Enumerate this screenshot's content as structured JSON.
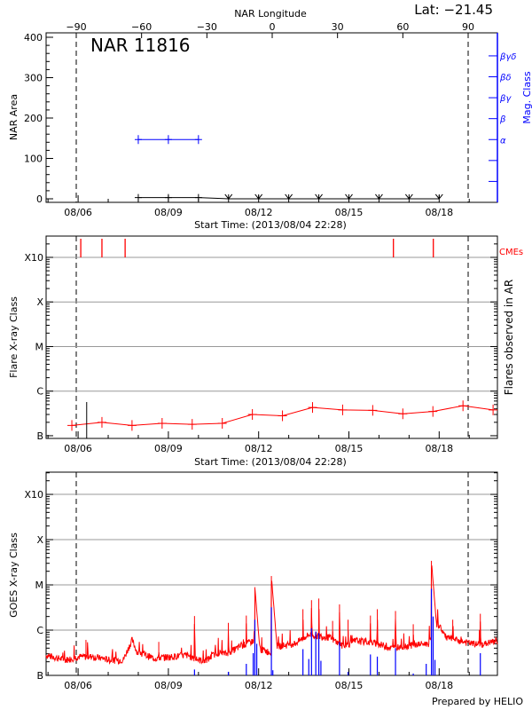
{
  "chart_data": [
    {
      "type": "line",
      "region": "NAR 11816",
      "latitude_label": "Lat: −21.45",
      "top_axis": {
        "label": "NAR Longitude",
        "range": [
          -90,
          90
        ],
        "ticks": [
          -90,
          -60,
          -30,
          0,
          30,
          60,
          90
        ]
      },
      "xlabel": "Start Time: (2013/08/04 22:28)",
      "xrange": [
        "2013-08-04T22:28",
        "2013-08-19T22:28"
      ],
      "xtick_labels": [
        "08/06",
        "08/09",
        "08/12",
        "08/15",
        "08/18"
      ],
      "ylabel": "NAR Area",
      "ylim": [
        -8.8,
        411
      ],
      "yticks": [
        0,
        100,
        200,
        300,
        400
      ],
      "limb_longitudes": [
        -90,
        90
      ],
      "right_axis": {
        "label": "Mag. Class",
        "color": "#0000ff",
        "ticks": [
          "",
          "",
          "α",
          "β",
          "βγ",
          "βδ",
          "βγδ"
        ],
        "range": [
          -1,
          7.1
        ]
      },
      "area_series": {
        "color": "#000000",
        "times": [
          "2013-08-08T00:00",
          "2013-08-09T00:00",
          "2013-08-10T00:00",
          "2013-08-11T00:00",
          "2013-08-12T00:00",
          "2013-08-13T00:00",
          "2013-08-14T00:00",
          "2013-08-15T00:00",
          "2013-08-16T00:00",
          "2013-08-17T00:00",
          "2013-08-18T00:00"
        ],
        "values": [
          3,
          3,
          3,
          0,
          0,
          0,
          0,
          0,
          0,
          0,
          0
        ]
      },
      "mag_class_series": {
        "color": "#0000ff",
        "times": [
          "2013-08-08T00:00",
          "2013-08-09T00:00",
          "2013-08-10T00:00"
        ],
        "values": [
          "α",
          "α",
          "α"
        ]
      }
    },
    {
      "type": "line",
      "xlabel": "Start Time: (2013/08/04 22:28)",
      "xrange": [
        "2013-08-04T22:28",
        "2013-08-19T22:28"
      ],
      "xtick_labels": [
        "08/06",
        "08/09",
        "08/12",
        "08/15",
        "08/18"
      ],
      "ylabel": "Flare X-ray Class",
      "right_label": "Flares observed in AR",
      "yscale": "log",
      "ylim": [
        8.7e-08,
        0.003
      ],
      "yticks": [
        {
          "label": "B",
          "value": 1e-07
        },
        {
          "label": "C",
          "value": 1e-06
        },
        {
          "label": "M",
          "value": 1e-05
        },
        {
          "label": "X",
          "value": 0.0001
        },
        {
          "label": "X10",
          "value": 0.001
        }
      ],
      "grid": true,
      "background_series": {
        "color": "#ff0000",
        "times": [
          "2013-08-05T19:00",
          "2013-08-06T19:00",
          "2013-08-07T19:00",
          "2013-08-08T19:00",
          "2013-08-09T19:00",
          "2013-08-10T19:00",
          "2013-08-11T19:00",
          "2013-08-12T19:00",
          "2013-08-13T19:00",
          "2013-08-14T19:00",
          "2013-08-15T19:00",
          "2013-08-16T19:00",
          "2013-08-17T19:00",
          "2013-08-18T19:00",
          "2013-08-19T19:00"
        ],
        "values": [
          1.7e-07,
          2e-07,
          1.7e-07,
          1.9e-07,
          1.8e-07,
          1.9e-07,
          3e-07,
          2.8e-07,
          4.3e-07,
          3.8e-07,
          3.7e-07,
          3.1e-07,
          3.5e-07,
          4.7e-07,
          3.8e-07
        ]
      },
      "flares": {
        "color": "#000000",
        "times": [
          "2013-08-06T06:50"
        ],
        "values": [
          5.7e-07
        ]
      },
      "cmes": {
        "label": "CMEs",
        "color": "#ff0000",
        "times": [
          "2013-08-06T02:07",
          "2013-08-06T19:00",
          "2013-08-07T13:30",
          "2013-08-16T11:30",
          "2013-08-17T19:20"
        ]
      }
    },
    {
      "type": "line",
      "xrange": [
        "2013-08-04T22:28",
        "2013-08-19T22:28"
      ],
      "xtick_labels": [
        "08/06",
        "08/09",
        "08/12",
        "08/15",
        "08/18"
      ],
      "ylabel": "GOES X-ray Class",
      "yscale": "log",
      "ylim": [
        1e-07,
        0.0031
      ],
      "yticks": [
        {
          "label": "B",
          "value": 1e-07
        },
        {
          "label": "C",
          "value": 1e-06
        },
        {
          "label": "M",
          "value": 1e-05
        },
        {
          "label": "X",
          "value": 0.0001
        },
        {
          "label": "X10",
          "value": 0.001
        }
      ],
      "grid": true,
      "goes_flux": {
        "color": "#ff0000",
        "baseline": [
          [
            "2013-08-04T22:28",
            2.8e-07
          ],
          [
            "2013-08-05T13:40",
            2.2e-07
          ],
          [
            "2013-08-06T00:40",
            2.6e-07
          ],
          [
            "2013-08-06T11:40",
            2.6e-07
          ],
          [
            "2013-08-07T01:20",
            2.2e-07
          ],
          [
            "2013-08-07T12:00",
            2.2e-07
          ],
          [
            "2013-08-07T19:00",
            6.1e-07
          ],
          [
            "2013-08-07T23:20",
            3.2e-07
          ],
          [
            "2013-08-08T13:00",
            2.4e-07
          ],
          [
            "2013-08-09T02:40",
            2.6e-07
          ],
          [
            "2013-08-09T14:50",
            2.8e-07
          ],
          [
            "2013-08-10T00:30",
            2.2e-07
          ],
          [
            "2013-08-10T05:50",
            2.1e-07
          ],
          [
            "2013-08-10T14:20",
            3.2e-07
          ],
          [
            "2013-08-10T22:20",
            3e-07
          ],
          [
            "2013-08-11T09:20",
            4.4e-07
          ],
          [
            "2013-08-11T20:20",
            5.9e-07
          ],
          [
            "2013-08-12T01:40",
            3.8e-07
          ],
          [
            "2013-08-12T10:00",
            3.2e-07
          ],
          [
            "2013-08-12T15:30",
            4.4e-07
          ],
          [
            "2013-08-13T05:10",
            5.1e-07
          ],
          [
            "2013-08-13T16:00",
            8e-07
          ],
          [
            "2013-08-14T08:30",
            6.9e-07
          ],
          [
            "2013-08-14T19:20",
            4.4e-07
          ],
          [
            "2013-08-15T06:20",
            5.9e-07
          ],
          [
            "2013-08-15T22:50",
            5.1e-07
          ],
          [
            "2013-08-16T09:40",
            4e-07
          ],
          [
            "2013-08-17T02:10",
            4.7e-07
          ],
          [
            "2013-08-17T15:50",
            5.1e-07
          ],
          [
            "2013-08-17T22:40",
            1.5e-06
          ],
          [
            "2013-08-18T05:30",
            6.9e-07
          ],
          [
            "2013-08-18T19:10",
            5.5e-07
          ],
          [
            "2013-08-19T08:50",
            4.7e-07
          ],
          [
            "2013-08-19T22:20",
            5.9e-07
          ]
        ],
        "peaks": [
          [
            "2013-08-06T06:15",
            6.1e-07
          ],
          [
            "2013-08-08T16:20",
            5.5e-07
          ],
          [
            "2013-08-09T20:50",
            2.05e-06
          ],
          [
            "2013-08-10T23:50",
            1.45e-06
          ],
          [
            "2013-08-11T14:10",
            2.1e-06
          ],
          [
            "2013-08-11T21:00",
            8.9e-06
          ],
          [
            "2013-08-12T10:10",
            1.57e-05
          ],
          [
            "2013-08-13T11:20",
            2.9e-06
          ],
          [
            "2013-08-13T18:10",
            4.6e-06
          ],
          [
            "2013-08-14T00:00",
            5e-06
          ],
          [
            "2013-08-14T11:00",
            1.6e-06
          ],
          [
            "2013-08-14T16:30",
            3.7e-06
          ],
          [
            "2013-08-14T23:20",
            1.7e-06
          ],
          [
            "2013-08-15T17:10",
            2.1e-06
          ],
          [
            "2013-08-15T22:40",
            2.9e-06
          ],
          [
            "2013-08-16T13:10",
            2.65e-06
          ],
          [
            "2013-08-17T03:20",
            1.35e-06
          ],
          [
            "2013-08-17T17:50",
            3.4e-05
          ],
          [
            "2013-08-18T10:50",
            1.7e-06
          ],
          [
            "2013-08-19T08:50",
            2.3e-06
          ]
        ]
      },
      "flare_events": {
        "color": "#0000ff",
        "events": [
          [
            "2013-08-09T20:50",
            1.35e-07
          ],
          [
            "2013-08-10T23:50",
            1.2e-07
          ],
          [
            "2013-08-11T14:10",
            1.8e-07
          ],
          [
            "2013-08-11T19:40",
            3.1e-07
          ],
          [
            "2013-08-11T21:00",
            1.7e-06
          ],
          [
            "2013-08-11T22:30",
            5e-07
          ],
          [
            "2013-08-12T10:10",
            3.2e-06
          ],
          [
            "2013-08-12T11:20",
            1.3e-07
          ],
          [
            "2013-08-13T11:20",
            3.8e-07
          ],
          [
            "2013-08-13T16:00",
            2.3e-07
          ],
          [
            "2013-08-13T18:10",
            1.1e-06
          ],
          [
            "2013-08-13T21:35",
            9.3e-07
          ],
          [
            "2013-08-14T00:00",
            8.6e-07
          ],
          [
            "2013-08-14T01:40",
            2.1e-07
          ],
          [
            "2013-08-14T16:30",
            5.5e-07
          ],
          [
            "2013-08-14T23:20",
            1.2e-07
          ],
          [
            "2013-08-15T17:10",
            2.9e-07
          ],
          [
            "2013-08-15T22:40",
            2.6e-07
          ],
          [
            "2013-08-16T13:10",
            4e-07
          ],
          [
            "2013-08-17T03:20",
            1.1e-07
          ],
          [
            "2013-08-17T13:40",
            1.8e-07
          ],
          [
            "2013-08-17T17:50",
            8.2e-06
          ],
          [
            "2013-08-17T19:10",
            2e-06
          ],
          [
            "2013-08-17T20:40",
            2.2e-07
          ],
          [
            "2013-08-19T08:50",
            3.1e-07
          ]
        ]
      }
    }
  ],
  "footer": {
    "credit": "Prepared by HELIO"
  }
}
